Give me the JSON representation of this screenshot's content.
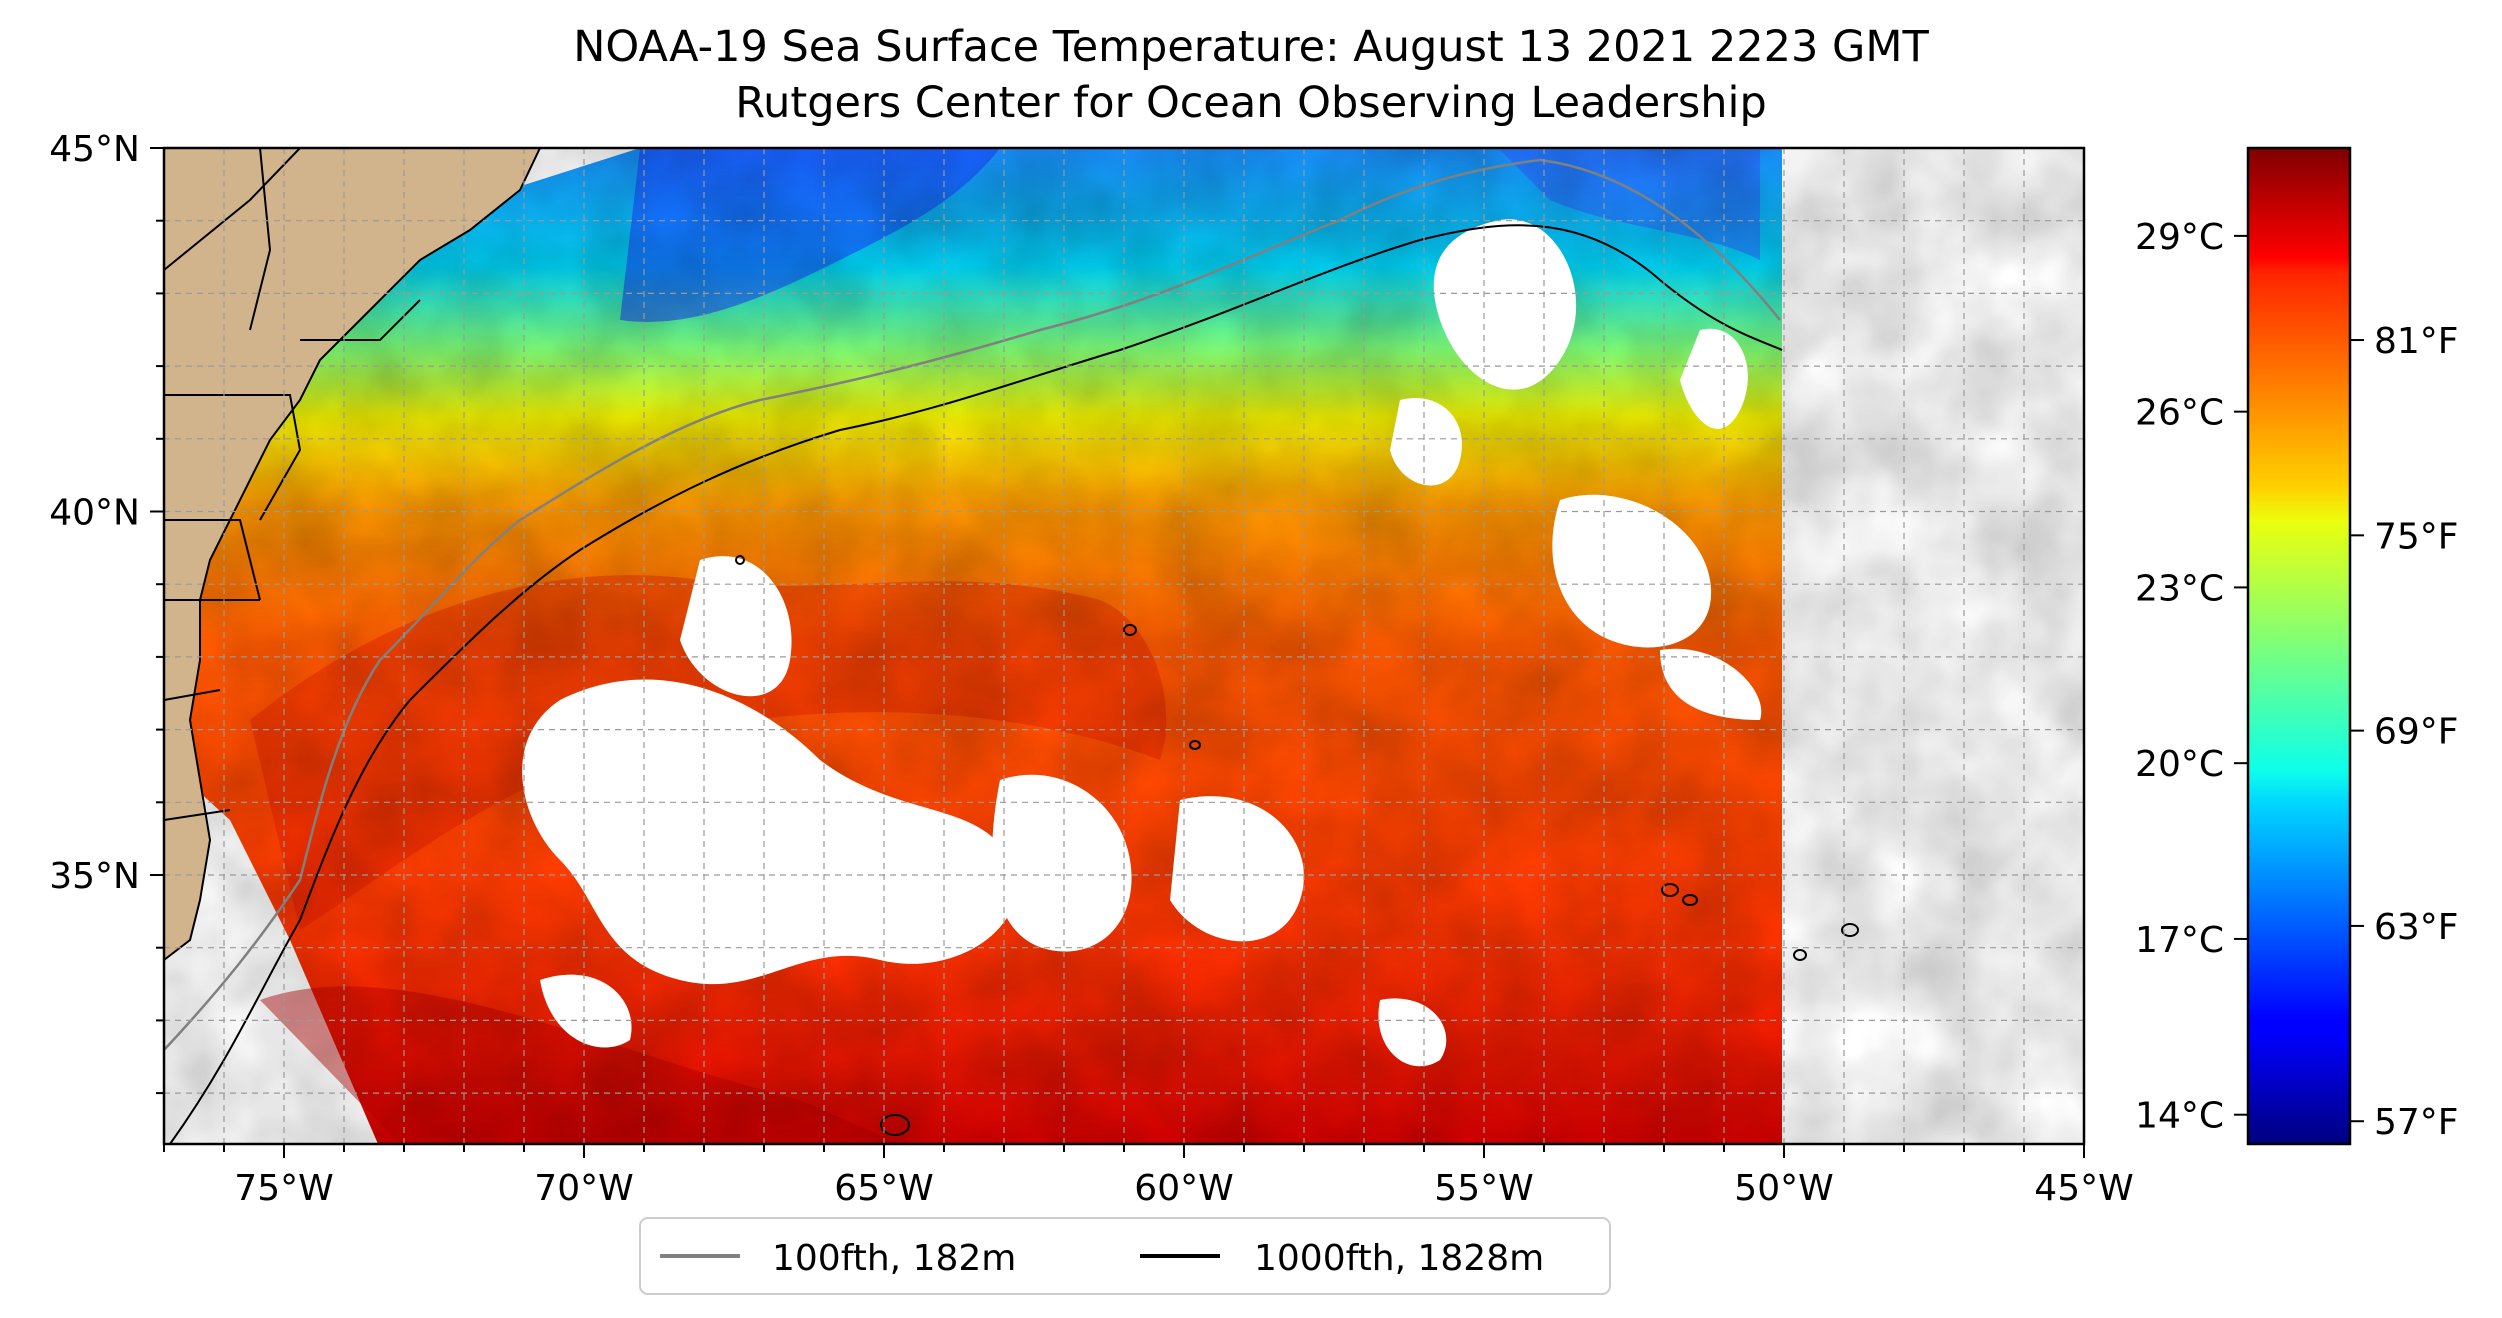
{
  "title": "NOAA-19 Sea Surface Temperature: August 13 2021 2223 GMT",
  "subtitle": "Rutgers Center for Ocean Observing Leadership",
  "map": {
    "lon_range": [
      -77,
      -45
    ],
    "lat_range": [
      31.3,
      45
    ],
    "lon_ticks": [
      "75°W",
      "70°W",
      "65°W",
      "60°W",
      "55°W",
      "50°W",
      "45°W"
    ],
    "lon_values": [
      -75,
      -70,
      -65,
      -60,
      -55,
      -50,
      -45
    ],
    "lat_ticks": [
      "45°N",
      "40°N",
      "35°N"
    ],
    "lat_values": [
      45,
      40,
      35
    ],
    "gridlines": "dashed every 1°",
    "land_color": "#d2b48c",
    "cloud_mask_color": "#ffffff"
  },
  "colorbar": {
    "colormap": "jet",
    "celsius_ticks": [
      "29°C",
      "26°C",
      "23°C",
      "20°C",
      "17°C",
      "14°C"
    ],
    "celsius_values": [
      29,
      26,
      23,
      20,
      17,
      14
    ],
    "fahrenheit_ticks": [
      "81°F",
      "75°F",
      "69°F",
      "63°F",
      "57°F"
    ],
    "fahrenheit_values": [
      81,
      75,
      69,
      63,
      57
    ],
    "range_celsius": [
      13.5,
      30.5
    ]
  },
  "legend": {
    "placement": "bottom-center",
    "items": [
      {
        "label": "100fth, 182m",
        "color": "#808080"
      },
      {
        "label": "1000fth, 1828m",
        "color": "#000000"
      }
    ]
  }
}
